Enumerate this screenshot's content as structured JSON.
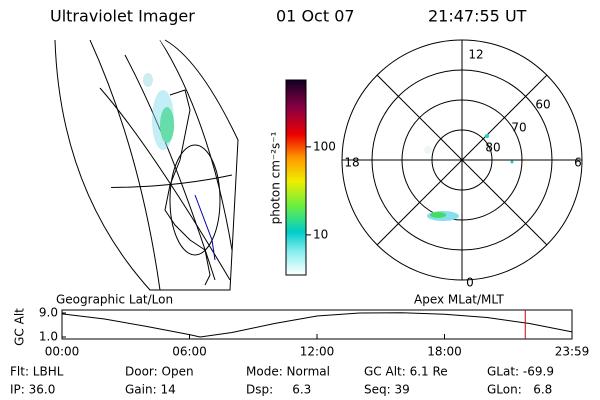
{
  "header": {
    "title": "Ultraviolet Imager",
    "date": "01 Oct 07",
    "time": "21:47:55 UT"
  },
  "colorbar": {
    "label": "photon cm⁻²s⁻¹",
    "log": true,
    "ylim": [
      3.5,
      575
    ],
    "yticks": [
      10,
      100
    ]
  },
  "polar": {
    "mlt_labels": [
      "12",
      "18",
      "6",
      "0"
    ],
    "lat_labels": [
      "60",
      "70",
      "80"
    ]
  },
  "map_label": "Geographic Lat/Lon",
  "polar_label": "Apex MLat/MLT",
  "altplot": {
    "ylabel": "GC Alt",
    "ylim": [
      1.0,
      9.0
    ],
    "yticks": [
      {
        "value": 1.0,
        "label": "1.0"
      },
      {
        "value": 9.0,
        "label": "9.0"
      }
    ],
    "xlim": [
      0,
      24
    ],
    "xticks": [
      {
        "value": 0,
        "label": "00:00"
      },
      {
        "value": 6,
        "label": "06:00"
      },
      {
        "value": 12,
        "label": "12:00"
      },
      {
        "value": 18,
        "label": "18:00"
      },
      {
        "value": 24,
        "label": "23:59"
      }
    ],
    "x": [
      0,
      2,
      4,
      6,
      6.5,
      8,
      10,
      12,
      14,
      16,
      18,
      20,
      22,
      24
    ],
    "values": [
      8.7,
      7,
      4.5,
      1.8,
      1.0,
      2.5,
      5.5,
      8,
      9,
      9.1,
      8.6,
      7.5,
      5.5,
      2.7
    ],
    "marker": 21.8,
    "color": "#000000",
    "marker_color": "#cc0000"
  },
  "footer": [
    [
      "Flt: LBHL",
      "Door: Open",
      "Mode: Normal",
      "GC Alt: 6.1 Re",
      "GLat: -69.9"
    ],
    [
      "IP: 36.0",
      "Gain: 14",
      "Dsp:     6.3",
      "Seq: 39",
      "GLon:   6.8"
    ]
  ]
}
